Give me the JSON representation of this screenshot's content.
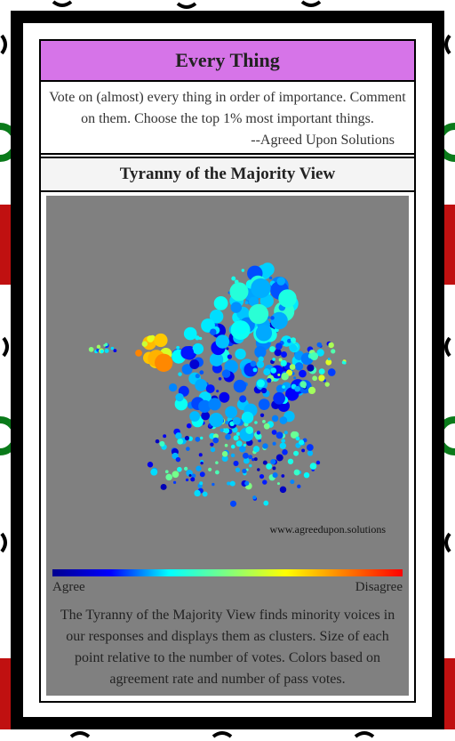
{
  "header": {
    "title": "Every Thing"
  },
  "intro": {
    "text": "Vote on (almost) every thing in order of importance. Comment on them. Choose the top 1% most important things.",
    "signature": "--Agreed Upon Solutions"
  },
  "view": {
    "title": "Tyranny of the Majority View",
    "watermark": "www.agreedupon.solutions",
    "scale_low": "Agree",
    "scale_high": "Disagree",
    "description": "The Tyranny of the Majority View finds minority voices in our responses and displays them as clusters. Size of each point relative to the number of votes. Colors based on agreement rate and number of pass votes."
  }
}
